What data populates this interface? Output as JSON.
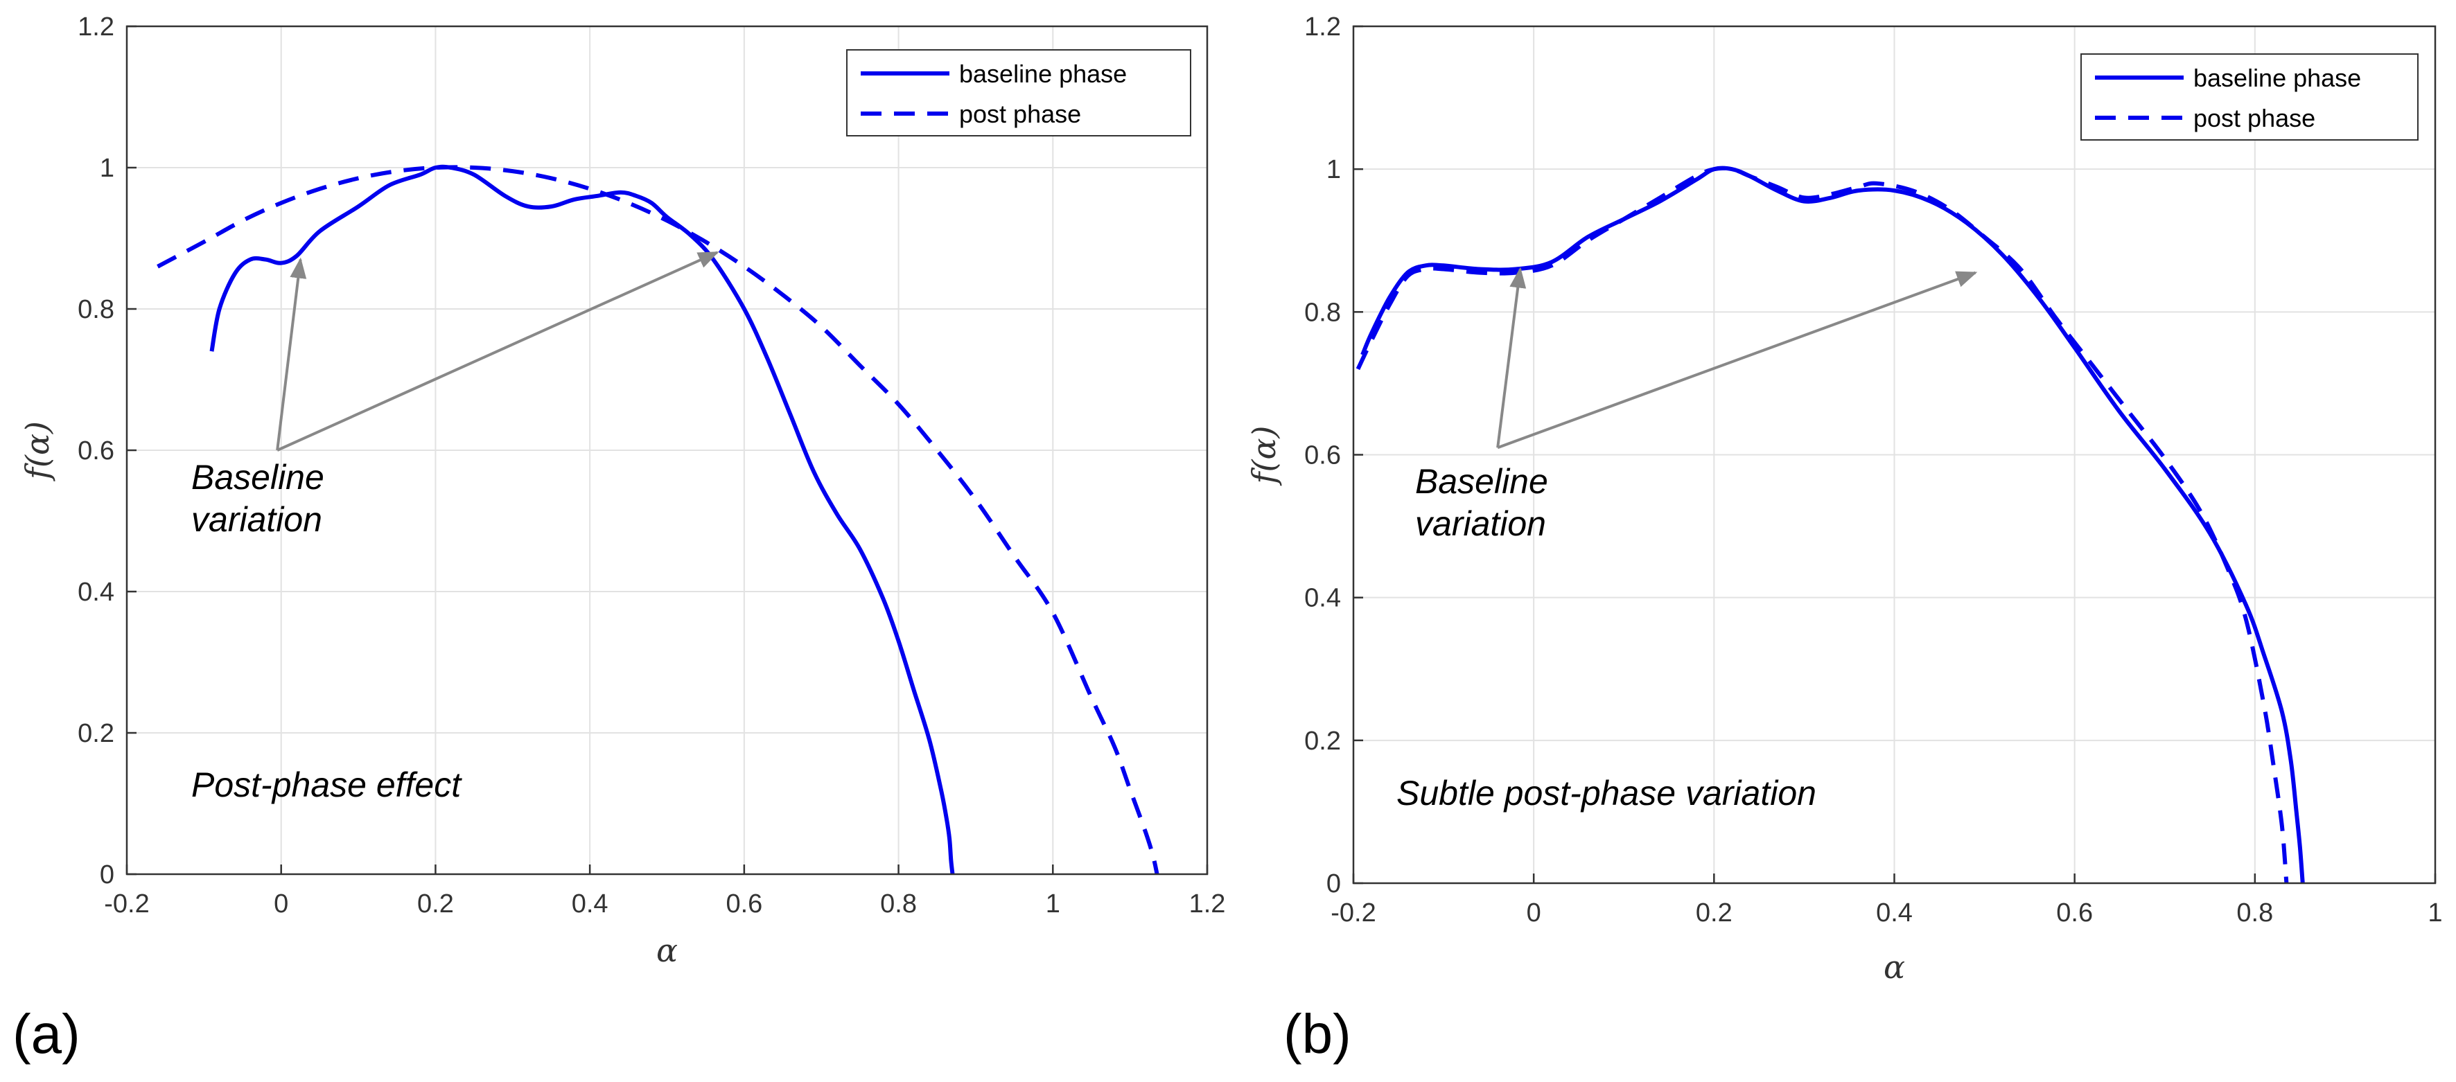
{
  "chart_data": [
    {
      "type": "line",
      "panel_label": "(a)",
      "xlabel": "α",
      "ylabel": "f(α)",
      "xlim": [
        -0.2,
        1.2
      ],
      "ylim": [
        0,
        1.2
      ],
      "xticks": [
        -0.2,
        0,
        0.2,
        0.4,
        0.6,
        0.8,
        1,
        1.2
      ],
      "yticks": [
        0,
        0.2,
        0.4,
        0.6,
        0.8,
        1,
        1.2
      ],
      "xtick_labels": [
        "-0.2",
        "0",
        "0.2",
        "0.4",
        "0.6",
        "0.8",
        "1",
        "1.2"
      ],
      "ytick_labels": [
        "0",
        "0.2",
        "0.4",
        "0.6",
        "0.8",
        "1",
        "1.2"
      ],
      "grid": true,
      "legend_position": "top-right",
      "series": [
        {
          "name": "baseline phase",
          "style": "solid",
          "color": "#0000ee",
          "x": [
            -0.09,
            -0.08,
            -0.06,
            -0.04,
            -0.02,
            0.0,
            0.02,
            0.05,
            0.1,
            0.14,
            0.18,
            0.2,
            0.22,
            0.25,
            0.29,
            0.32,
            0.35,
            0.38,
            0.41,
            0.44,
            0.46,
            0.48,
            0.5,
            0.53,
            0.56,
            0.6,
            0.63,
            0.66,
            0.69,
            0.72,
            0.75,
            0.78,
            0.8,
            0.82,
            0.84,
            0.855,
            0.862,
            0.866,
            0.868,
            0.87
          ],
          "values": [
            0.74,
            0.8,
            0.85,
            0.87,
            0.87,
            0.865,
            0.875,
            0.91,
            0.945,
            0.975,
            0.99,
            1.0,
            1.0,
            0.99,
            0.96,
            0.945,
            0.945,
            0.955,
            0.96,
            0.965,
            0.96,
            0.95,
            0.93,
            0.905,
            0.87,
            0.8,
            0.73,
            0.65,
            0.57,
            0.51,
            0.46,
            0.39,
            0.33,
            0.26,
            0.19,
            0.12,
            0.08,
            0.05,
            0.02,
            0.0
          ]
        },
        {
          "name": "post phase",
          "style": "dashed",
          "color": "#0000ee",
          "x": [
            -0.16,
            -0.1,
            -0.05,
            0.0,
            0.05,
            0.1,
            0.15,
            0.2,
            0.25,
            0.3,
            0.35,
            0.4,
            0.45,
            0.5,
            0.55,
            0.6,
            0.65,
            0.7,
            0.75,
            0.8,
            0.85,
            0.9,
            0.95,
            1.0,
            1.05,
            1.08,
            1.1,
            1.12,
            1.13,
            1.135
          ],
          "values": [
            0.86,
            0.895,
            0.925,
            0.95,
            0.97,
            0.985,
            0.995,
            1.0,
            1.0,
            0.995,
            0.985,
            0.97,
            0.95,
            0.925,
            0.895,
            0.86,
            0.82,
            0.775,
            0.72,
            0.665,
            0.6,
            0.53,
            0.45,
            0.37,
            0.25,
            0.18,
            0.12,
            0.06,
            0.025,
            0.0
          ]
        }
      ],
      "annotations": [
        {
          "text_lines": [
            "Baseline",
            "variation"
          ],
          "arrow_from": [
            -0.005,
            0.6
          ],
          "arrow_to": [
            [
              0.025,
              0.87
            ],
            [
              0.565,
              0.88
            ]
          ]
        },
        {
          "text": "Post-phase effect",
          "at": [
            -0.12,
            0.125
          ]
        }
      ]
    },
    {
      "type": "line",
      "panel_label": "(b)",
      "xlabel": "α",
      "ylabel": "f(α)",
      "xlim": [
        -0.2,
        1
      ],
      "ylim": [
        0,
        1.2
      ],
      "xticks": [
        -0.2,
        0,
        0.2,
        0.4,
        0.6,
        0.8,
        1
      ],
      "yticks": [
        0,
        0.2,
        0.4,
        0.6,
        0.8,
        1,
        1.2
      ],
      "xtick_labels": [
        "-0.2",
        "0",
        "0.2",
        "0.4",
        "0.6",
        "0.8",
        "1"
      ],
      "ytick_labels": [
        "0",
        "0.2",
        "0.4",
        "0.6",
        "0.8",
        "1",
        "1.2"
      ],
      "grid": true,
      "legend_position": "top-right",
      "series": [
        {
          "name": "baseline phase",
          "style": "solid",
          "color": "#0000ee",
          "x": [
            -0.19,
            -0.18,
            -0.16,
            -0.14,
            -0.12,
            -0.1,
            -0.06,
            -0.02,
            0.02,
            0.06,
            0.1,
            0.14,
            0.18,
            0.2,
            0.22,
            0.24,
            0.27,
            0.3,
            0.33,
            0.36,
            0.4,
            0.44,
            0.48,
            0.52,
            0.56,
            0.6,
            0.65,
            0.7,
            0.75,
            0.79,
            0.81,
            0.83,
            0.84,
            0.846,
            0.85,
            0.853
          ],
          "values": [
            0.74,
            0.77,
            0.82,
            0.855,
            0.865,
            0.865,
            0.86,
            0.86,
            0.87,
            0.905,
            0.93,
            0.955,
            0.985,
            1.0,
            1.0,
            0.99,
            0.97,
            0.955,
            0.96,
            0.97,
            0.97,
            0.955,
            0.925,
            0.88,
            0.82,
            0.75,
            0.66,
            0.58,
            0.49,
            0.39,
            0.32,
            0.24,
            0.17,
            0.1,
            0.05,
            0.0
          ]
        },
        {
          "name": "post phase",
          "style": "dashed",
          "color": "#0000ee",
          "x": [
            -0.195,
            -0.18,
            -0.16,
            -0.14,
            -0.12,
            -0.1,
            -0.06,
            -0.02,
            0.02,
            0.06,
            0.1,
            0.14,
            0.18,
            0.2,
            0.22,
            0.24,
            0.27,
            0.3,
            0.33,
            0.36,
            0.38,
            0.42,
            0.46,
            0.5,
            0.54,
            0.58,
            0.62,
            0.66,
            0.7,
            0.74,
            0.77,
            0.79,
            0.81,
            0.82,
            0.83,
            0.835
          ],
          "values": [
            0.72,
            0.76,
            0.81,
            0.85,
            0.86,
            0.86,
            0.855,
            0.855,
            0.865,
            0.9,
            0.93,
            0.96,
            0.99,
            1.0,
            1.0,
            0.99,
            0.975,
            0.96,
            0.965,
            0.975,
            0.98,
            0.97,
            0.945,
            0.905,
            0.86,
            0.79,
            0.725,
            0.66,
            0.595,
            0.52,
            0.44,
            0.37,
            0.25,
            0.17,
            0.08,
            0.0
          ]
        }
      ],
      "annotations": [
        {
          "text_lines": [
            "Baseline",
            "variation"
          ],
          "arrow_from": [
            -0.04,
            0.61
          ],
          "arrow_to": [
            [
              -0.015,
              0.86
            ],
            [
              0.49,
              0.855
            ]
          ]
        },
        {
          "text": "Subtle post-phase variation",
          "at": [
            -0.15,
            0.12
          ]
        }
      ]
    }
  ],
  "colors": {
    "series": "#0000ee",
    "grid": "#e2e2e2",
    "axis": "#333333",
    "arrow": "#888888"
  }
}
